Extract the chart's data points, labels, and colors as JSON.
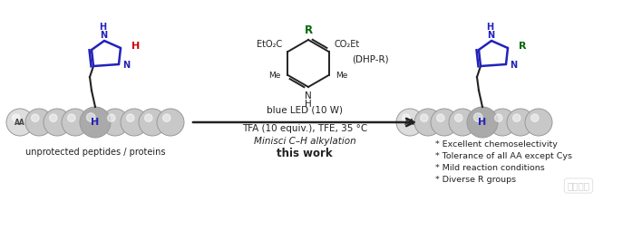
{
  "left_label": "unprotected peptides / proteins",
  "right_bullets": [
    "* Excellent chemoselectivity",
    "* Tolerance of all AA except Cys",
    "* Mild reaction conditions",
    "* Diverse R groups"
  ],
  "center_text_lines": [
    {
      "text": "blue LED (10 W)",
      "style": "normal",
      "size": 7.5,
      "color": "#222222"
    },
    {
      "text": "TFA (10 equiv.), TFE, 35 °C",
      "style": "normal",
      "size": 7.5,
      "color": "#222222"
    },
    {
      "text": "Minisci C–H alkylation",
      "style": "italic",
      "size": 7.5,
      "color": "#222222"
    },
    {
      "text": "this work",
      "style": "bold",
      "size": 8.5,
      "color": "#222222"
    }
  ],
  "dhp_label": "(DHP-R)",
  "sphere_color_normal": "#c8c8c8",
  "sphere_color_dark": "#aaaaaa",
  "sphere_color_aa": "#dddddd",
  "imidazole_color": "#2222bb",
  "red_H_color": "#cc0000",
  "green_R_color": "#006600",
  "arrow_color": "#222222",
  "watermark": "图拓生物"
}
